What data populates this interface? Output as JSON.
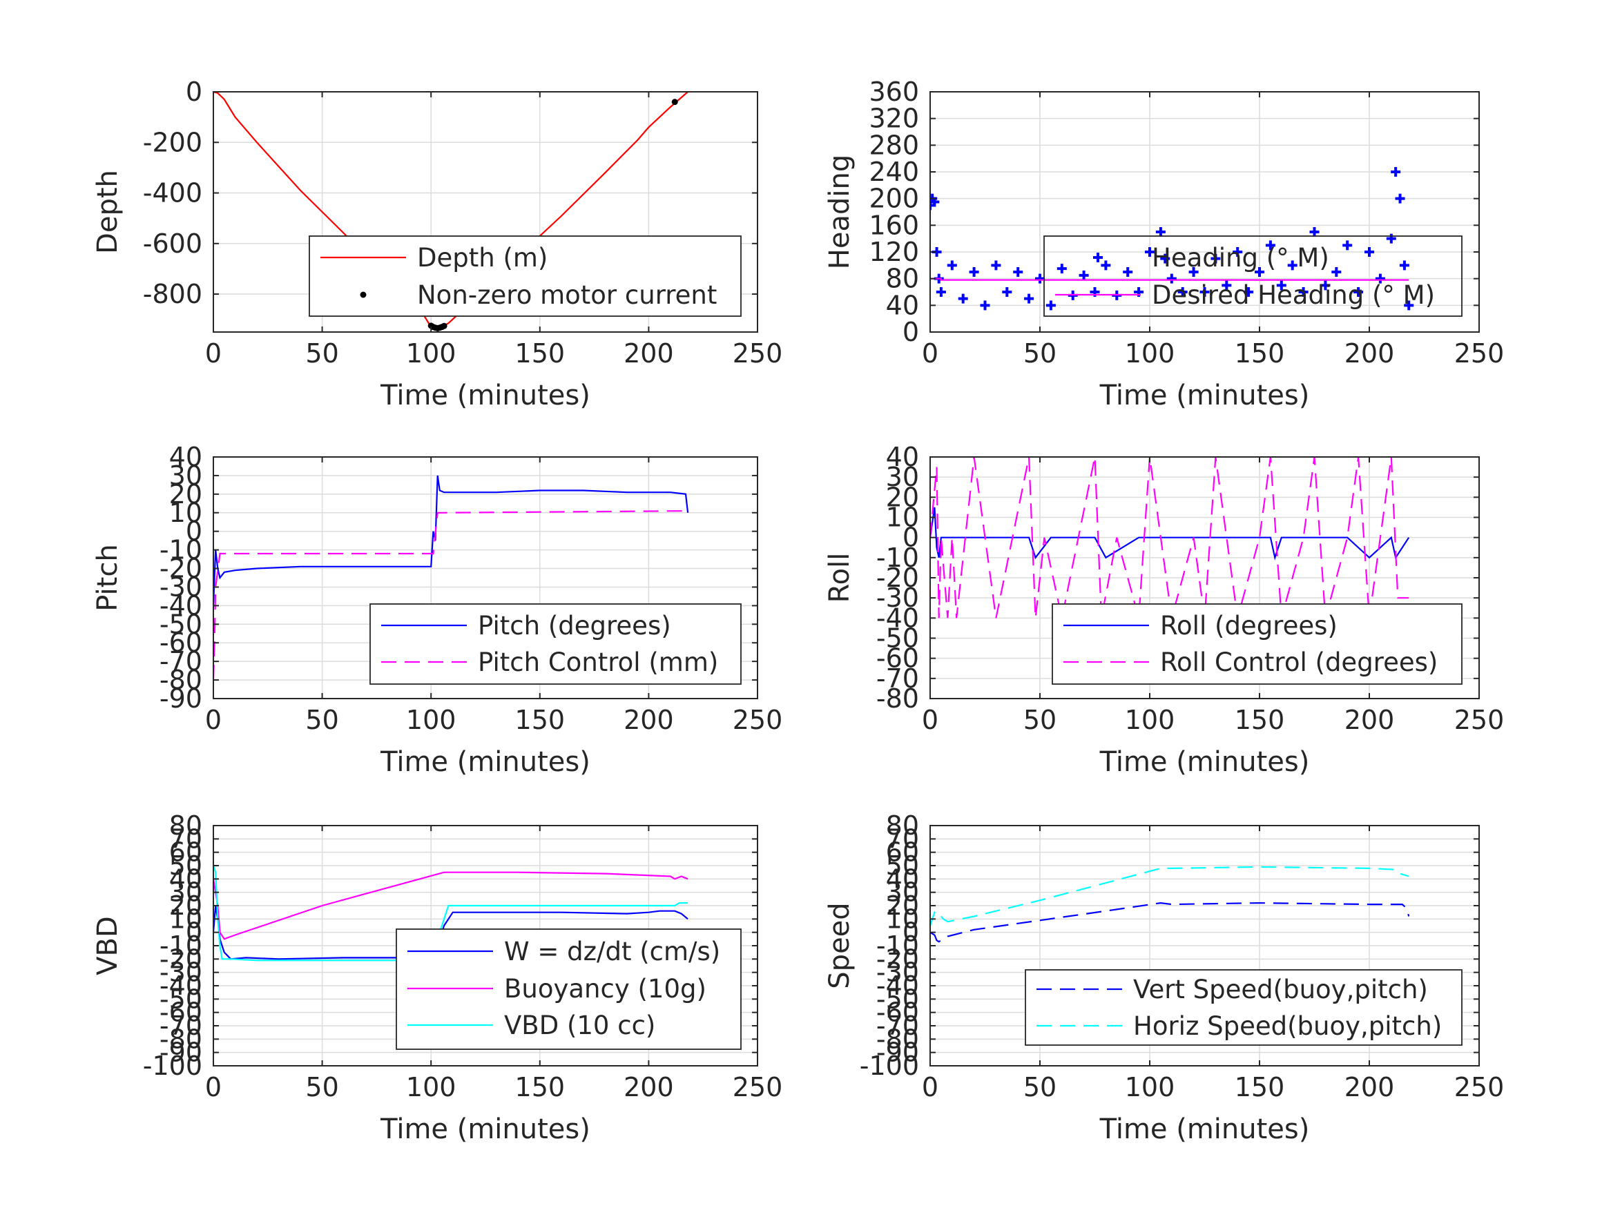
{
  "chart_data": [
    {
      "type": "line",
      "xlabel": "Time (minutes)",
      "ylabel": "Depth",
      "xlim": [
        0,
        250
      ],
      "ylim": [
        -950,
        0
      ],
      "xticks": [
        "0",
        "50",
        "100",
        "150",
        "200",
        "250"
      ],
      "yticks": [
        "0",
        "-200",
        "-400",
        "-600",
        "-800"
      ],
      "grid": true,
      "legend_position": "inside-bottom-right",
      "series": [
        {
          "name": "Depth (m)",
          "color": "#ff0000",
          "style": "solid",
          "x": [
            0,
            2,
            5,
            10,
            20,
            40,
            60,
            80,
            95,
            100,
            102,
            105,
            108,
            120,
            140,
            160,
            180,
            195,
            200,
            210,
            218
          ],
          "y": [
            0,
            -5,
            -30,
            -100,
            -200,
            -390,
            -560,
            -740,
            -860,
            -930,
            -935,
            -930,
            -915,
            -820,
            -650,
            -490,
            -320,
            -190,
            -140,
            -60,
            0
          ]
        },
        {
          "name": "Non-zero motor current",
          "color": "#000000",
          "style": "markers",
          "x": [
            100,
            101,
            102,
            103,
            104,
            105,
            106,
            212
          ],
          "y": [
            -925,
            -930,
            -933,
            -935,
            -933,
            -930,
            -926,
            -40
          ]
        }
      ]
    },
    {
      "type": "line",
      "xlabel": "Time (minutes)",
      "ylabel": "Heading",
      "xlim": [
        0,
        250
      ],
      "ylim": [
        0,
        360
      ],
      "xticks": [
        "0",
        "50",
        "100",
        "150",
        "200",
        "250"
      ],
      "yticks": [
        "0",
        "40",
        "80",
        "120",
        "160",
        "200",
        "240",
        "280",
        "320",
        "360"
      ],
      "grid": true,
      "legend_position": "inside-bottom-right",
      "series": [
        {
          "name": "Heading (° M)",
          "color": "#0000ff",
          "style": "plus-markers",
          "x": [
            0,
            1,
            2,
            3,
            4,
            5,
            10,
            15,
            20,
            25,
            30,
            35,
            40,
            45,
            50,
            55,
            60,
            65,
            70,
            75,
            80,
            85,
            90,
            95,
            100,
            105,
            107,
            110,
            115,
            120,
            125,
            130,
            135,
            140,
            145,
            150,
            155,
            160,
            165,
            170,
            175,
            180,
            185,
            190,
            195,
            200,
            205,
            210,
            212,
            214,
            216,
            218
          ],
          "y": [
            190,
            200,
            195,
            120,
            80,
            60,
            100,
            50,
            90,
            40,
            100,
            60,
            90,
            50,
            80,
            40,
            95,
            55,
            85,
            60,
            100,
            55,
            90,
            60,
            120,
            150,
            110,
            80,
            60,
            90,
            60,
            110,
            70,
            120,
            60,
            90,
            130,
            70,
            100,
            60,
            150,
            70,
            90,
            130,
            60,
            120,
            80,
            140,
            240,
            200,
            100,
            40
          ]
        },
        {
          "name": "Desired Heading (° M)",
          "color": "#ff00ff",
          "style": "solid",
          "x": [
            0,
            5,
            5,
            210,
            210,
            218
          ],
          "y": [
            80,
            80,
            78,
            78,
            78,
            78
          ]
        }
      ]
    },
    {
      "type": "line",
      "xlabel": "Time (minutes)",
      "ylabel": "Pitch",
      "xlim": [
        0,
        250
      ],
      "ylim": [
        -90,
        40
      ],
      "xticks": [
        "0",
        "50",
        "100",
        "150",
        "200",
        "250"
      ],
      "yticks": [
        "-90",
        "-80",
        "-70",
        "-60",
        "-50",
        "-40",
        "-30",
        "-20",
        "-10",
        "0",
        "10",
        "20",
        "30",
        "40"
      ],
      "grid": true,
      "legend_position": "inside-bottom-right",
      "series": [
        {
          "name": "Pitch (degrees)",
          "color": "#0000ff",
          "style": "solid",
          "x": [
            0,
            1,
            2,
            3,
            5,
            10,
            20,
            40,
            60,
            80,
            100,
            101,
            102,
            103,
            104,
            106,
            110,
            130,
            150,
            170,
            190,
            210,
            217,
            218
          ],
          "y": [
            -40,
            -10,
            -20,
            -25,
            -22,
            -21,
            -20,
            -19,
            -19,
            -19,
            -19,
            0,
            -5,
            30,
            22,
            21,
            21,
            21,
            22,
            22,
            21,
            21,
            20,
            10
          ]
        },
        {
          "name": "Pitch Control (mm)",
          "color": "#ff00ff",
          "style": "dashed",
          "x": [
            0,
            0.5,
            1,
            3,
            5,
            100,
            101,
            103,
            105,
            218
          ],
          "y": [
            -80,
            -60,
            -30,
            -12,
            -12,
            -12,
            -12,
            10,
            10,
            11
          ]
        }
      ]
    },
    {
      "type": "line",
      "xlabel": "Time (minutes)",
      "ylabel": "Roll",
      "xlim": [
        0,
        250
      ],
      "ylim": [
        -80,
        40
      ],
      "xticks": [
        "0",
        "50",
        "100",
        "150",
        "200",
        "250"
      ],
      "yticks": [
        "-80",
        "-70",
        "-60",
        "-50",
        "-40",
        "-30",
        "-20",
        "-10",
        "0",
        "10",
        "20",
        "30",
        "40"
      ],
      "grid": true,
      "legend_position": "inside-bottom-right",
      "series": [
        {
          "name": "Roll (degrees)",
          "color": "#0000ff",
          "style": "solid",
          "x": [
            0,
            2,
            3,
            4,
            5,
            6,
            8,
            15,
            30,
            45,
            48,
            55,
            60,
            75,
            80,
            95,
            100,
            110,
            120,
            130,
            155,
            157,
            160,
            175,
            190,
            200,
            210,
            212,
            218
          ],
          "y": [
            0,
            15,
            -5,
            -10,
            0,
            0,
            0,
            0,
            0,
            0,
            -10,
            0,
            0,
            0,
            -10,
            0,
            0,
            0,
            0,
            0,
            0,
            -10,
            0,
            0,
            0,
            -10,
            0,
            -10,
            0
          ]
        },
        {
          "name": "Roll Control (degrees)",
          "color": "#ff00ff",
          "style": "dashed",
          "x": [
            0,
            3,
            4,
            5,
            8,
            10,
            12,
            20,
            25,
            30,
            45,
            48,
            52,
            60,
            75,
            78,
            85,
            95,
            100,
            110,
            120,
            125,
            130,
            140,
            150,
            155,
            160,
            170,
            175,
            180,
            190,
            195,
            200,
            205,
            210,
            213,
            218
          ],
          "y": [
            0,
            35,
            -40,
            0,
            -40,
            0,
            -40,
            40,
            0,
            -40,
            40,
            -40,
            0,
            -40,
            40,
            -40,
            0,
            -40,
            40,
            -40,
            0,
            -40,
            40,
            -40,
            0,
            40,
            -40,
            0,
            40,
            -40,
            0,
            40,
            -40,
            0,
            40,
            -30,
            -30
          ]
        }
      ]
    },
    {
      "type": "line",
      "xlabel": "Time (minutes)",
      "ylabel": "VBD",
      "xlim": [
        0,
        250
      ],
      "ylim": [
        -100,
        80
      ],
      "xticks": [
        "0",
        "50",
        "100",
        "150",
        "200",
        "250"
      ],
      "yticks": [
        "-100",
        "-90",
        "-80",
        "-70",
        "-60",
        "-50",
        "-40",
        "-30",
        "-20",
        "-10",
        "0",
        "10",
        "20",
        "30",
        "40",
        "50",
        "60",
        "70",
        "80"
      ],
      "grid": true,
      "legend_position": "inside-bottom-right",
      "series": [
        {
          "name": "W = dz/dt (cm/s)",
          "color": "#0000ff",
          "style": "solid",
          "x": [
            0,
            1,
            2,
            3,
            4,
            5,
            8,
            15,
            30,
            60,
            90,
            100,
            102,
            104,
            106,
            110,
            130,
            160,
            190,
            200,
            205,
            212,
            215,
            218
          ],
          "y": [
            0,
            20,
            10,
            -5,
            -10,
            -15,
            -20,
            -19,
            -20,
            -19,
            -19,
            -18,
            -15,
            -5,
            5,
            15,
            15,
            15,
            14,
            15,
            16,
            16,
            14,
            10
          ]
        },
        {
          "name": "Buoyancy (10g)",
          "color": "#ff00ff",
          "style": "solid",
          "x": [
            0,
            2,
            3,
            5,
            10,
            50,
            106,
            140,
            180,
            210,
            212,
            215,
            218
          ],
          "y": [
            40,
            20,
            0,
            -5,
            -2,
            20,
            45,
            45,
            44,
            42,
            40,
            42,
            40
          ]
        },
        {
          "name": "VBD (10 cc)",
          "color": "#00ffff",
          "style": "solid",
          "x": [
            0,
            1,
            2,
            3,
            4,
            5,
            8,
            20,
            50,
            80,
            100,
            102,
            104,
            106,
            108,
            110,
            150,
            200,
            212,
            214,
            218
          ],
          "y": [
            50,
            45,
            10,
            -10,
            -20,
            -20,
            -20,
            -21,
            -21,
            -21,
            -21,
            -15,
            0,
            10,
            20,
            20,
            20,
            20,
            20,
            22,
            22
          ]
        }
      ]
    },
    {
      "type": "line",
      "xlabel": "Time (minutes)",
      "ylabel": "Speed",
      "xlim": [
        0,
        250
      ],
      "ylim": [
        -100,
        80
      ],
      "xticks": [
        "0",
        "50",
        "100",
        "150",
        "200",
        "250"
      ],
      "yticks": [
        "-100",
        "-90",
        "-80",
        "-70",
        "-60",
        "-50",
        "-40",
        "-30",
        "-20",
        "-10",
        "0",
        "10",
        "20",
        "30",
        "40",
        "50",
        "60",
        "70",
        "80"
      ],
      "grid": true,
      "legend_position": "inside-bottom-right",
      "series": [
        {
          "name": "Vert Speed(buoy,pitch)",
          "color": "#0000ff",
          "style": "dashed",
          "x": [
            0,
            2,
            3,
            4,
            5,
            8,
            20,
            50,
            80,
            105,
            110,
            150,
            200,
            215,
            217,
            218
          ],
          "y": [
            0,
            -2,
            -6,
            -7,
            -6,
            -3,
            2,
            9,
            16,
            22,
            21,
            22,
            21,
            21,
            18,
            12
          ]
        },
        {
          "name": "Horiz Speed(buoy,pitch)",
          "color": "#00ffff",
          "style": "dashed",
          "x": [
            0,
            2,
            3,
            4,
            6,
            8,
            20,
            50,
            80,
            105,
            110,
            150,
            200,
            212,
            214,
            218
          ],
          "y": [
            5,
            15,
            13,
            14,
            10,
            8,
            12,
            24,
            37,
            48,
            48,
            49,
            48,
            47,
            44,
            42
          ]
        }
      ]
    }
  ]
}
